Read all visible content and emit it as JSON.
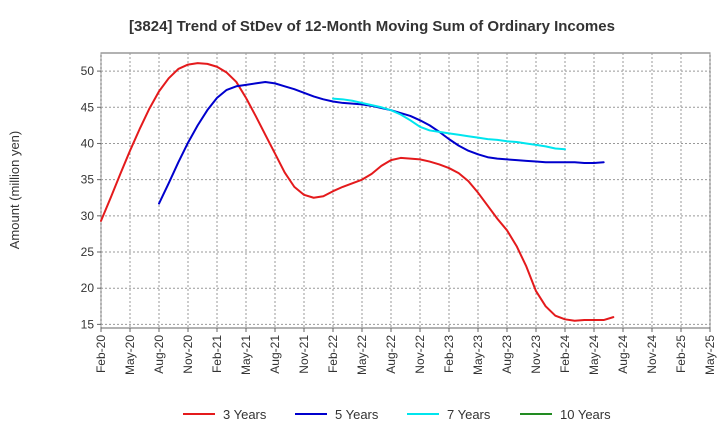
{
  "chart_data": {
    "type": "line",
    "title": "[3824]  Trend of StDev of 12-Month Moving Sum of Ordinary Incomes",
    "xlabel": "",
    "ylabel": "Amount (million yen)",
    "ylim": [
      14.5,
      52.5
    ],
    "yticks": [
      15,
      20,
      25,
      30,
      35,
      40,
      45,
      50
    ],
    "x_tick_labels": [
      "Feb-20",
      "May-20",
      "Aug-20",
      "Nov-20",
      "Feb-21",
      "May-21",
      "Aug-21",
      "Nov-21",
      "Feb-22",
      "May-22",
      "Aug-22",
      "Nov-22",
      "Feb-23",
      "May-23",
      "Aug-23",
      "Nov-23",
      "Feb-24",
      "May-24",
      "Aug-24",
      "Nov-24",
      "Feb-25",
      "May-25"
    ],
    "x_index_range": [
      0,
      63
    ],
    "grid": true,
    "legend_position": "bottom",
    "series": [
      {
        "name": "3 Years",
        "color": "#e41a1c",
        "start_index": 0,
        "values": [
          29.3,
          32.5,
          35.8,
          39.0,
          42.0,
          44.8,
          47.2,
          49.0,
          50.3,
          50.9,
          51.1,
          51.0,
          50.6,
          49.8,
          48.5,
          46.3,
          43.8,
          41.2,
          38.6,
          36.0,
          34.0,
          32.9,
          32.5,
          32.7,
          33.4,
          34.0,
          34.5,
          35.0,
          35.8,
          36.9,
          37.7,
          38.0,
          37.9,
          37.8,
          37.5,
          37.1,
          36.6,
          35.9,
          34.8,
          33.2,
          31.4,
          29.6,
          28.0,
          25.8,
          23.0,
          19.6,
          17.5,
          16.2,
          15.7,
          15.5,
          15.6,
          15.6,
          15.6,
          16.0
        ]
      },
      {
        "name": "5 Years",
        "color": "#0000cd",
        "start_index": 6,
        "values": [
          31.7,
          34.5,
          37.4,
          40.1,
          42.5,
          44.6,
          46.3,
          47.4,
          47.9,
          48.1,
          48.3,
          48.5,
          48.3,
          47.9,
          47.5,
          47.0,
          46.5,
          46.1,
          45.8,
          45.6,
          45.5,
          45.4,
          45.2,
          44.9,
          44.6,
          44.2,
          43.8,
          43.2,
          42.5,
          41.6,
          40.6,
          39.7,
          39.0,
          38.5,
          38.1,
          37.9,
          37.8,
          37.7,
          37.6,
          37.5,
          37.4,
          37.4,
          37.4,
          37.4,
          37.3,
          37.3,
          37.4
        ]
      },
      {
        "name": "7 Years",
        "color": "#00e5ee",
        "start_index": 24,
        "values": [
          46.2,
          46.1,
          45.9,
          45.6,
          45.3,
          45.0,
          44.6,
          44.0,
          43.2,
          42.3,
          41.8,
          41.6,
          41.4,
          41.2,
          41.0,
          40.8,
          40.6,
          40.5,
          40.3,
          40.2,
          40.0,
          39.8,
          39.6,
          39.3,
          39.2
        ]
      },
      {
        "name": "10 Years",
        "color": "#228b22",
        "start_index": 0,
        "values": []
      }
    ]
  }
}
